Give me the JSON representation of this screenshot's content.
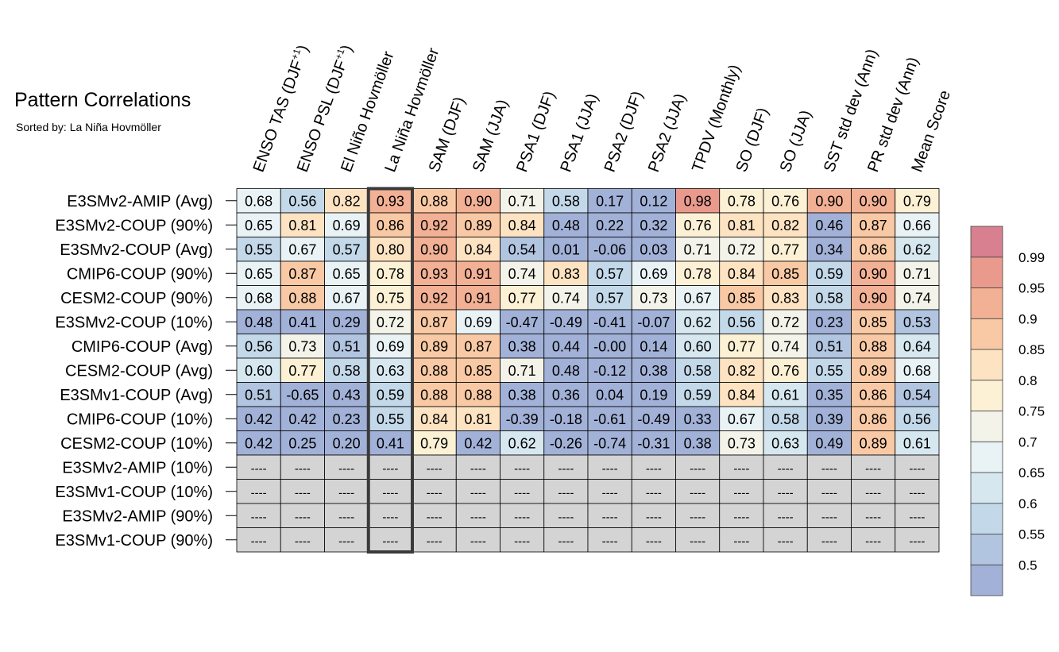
{
  "title": "Pattern Correlations",
  "subtitle": "Sorted by: La Niña Hovmöller",
  "chart_data": {
    "type": "heatmap",
    "columns": [
      {
        "main": "ENSO TAS (DJF",
        "sup": "+1",
        "tail": ")"
      },
      {
        "main": "ENSO PSL (DJF",
        "sup": "+1",
        "tail": ")"
      },
      {
        "main": "El Niño Hovmöller",
        "sup": "",
        "tail": ""
      },
      {
        "main": "La Niña Hovmöller",
        "sup": "",
        "tail": ""
      },
      {
        "main": "SAM (DJF)",
        "sup": "",
        "tail": ""
      },
      {
        "main": "SAM (JJA)",
        "sup": "",
        "tail": ""
      },
      {
        "main": "PSA1 (DJF)",
        "sup": "",
        "tail": ""
      },
      {
        "main": "PSA1 (JJA)",
        "sup": "",
        "tail": ""
      },
      {
        "main": "PSA2 (DJF)",
        "sup": "",
        "tail": ""
      },
      {
        "main": "PSA2 (JJA)",
        "sup": "",
        "tail": ""
      },
      {
        "main": "TPDV (Monthly)",
        "sup": "",
        "tail": ""
      },
      {
        "main": "SO (DJF)",
        "sup": "",
        "tail": ""
      },
      {
        "main": "SO (JJA)",
        "sup": "",
        "tail": ""
      },
      {
        "main": "SST std dev (Ann)",
        "sup": "",
        "tail": ""
      },
      {
        "main": "PR std dev (Ann)",
        "sup": "",
        "tail": ""
      },
      {
        "main": "Mean Score",
        "sup": "",
        "tail": ""
      }
    ],
    "highlight_column": "La Niña Hovmöller",
    "missing_text": "----",
    "rows": [
      {
        "name": "E3SMv2-AMIP (Avg)",
        "values": [
          "0.68",
          "0.56",
          "0.82",
          "0.93",
          "0.88",
          "0.90",
          "0.71",
          "0.58",
          "0.17",
          "0.12",
          "0.98",
          "0.78",
          "0.76",
          "0.90",
          "0.90",
          "0.79"
        ]
      },
      {
        "name": "E3SMv2-COUP (90%)",
        "values": [
          "0.65",
          "0.81",
          "0.69",
          "0.86",
          "0.92",
          "0.89",
          "0.84",
          "0.48",
          "0.22",
          "0.32",
          "0.76",
          "0.81",
          "0.82",
          "0.46",
          "0.87",
          "0.66"
        ]
      },
      {
        "name": "E3SMv2-COUP (Avg)",
        "values": [
          "0.55",
          "0.67",
          "0.57",
          "0.80",
          "0.90",
          "0.84",
          "0.54",
          "0.01",
          "-0.06",
          "0.03",
          "0.71",
          "0.72",
          "0.77",
          "0.34",
          "0.86",
          "0.62"
        ]
      },
      {
        "name": "CMIP6-COUP (90%)",
        "values": [
          "0.65",
          "0.87",
          "0.65",
          "0.78",
          "0.93",
          "0.91",
          "0.74",
          "0.83",
          "0.57",
          "0.69",
          "0.78",
          "0.84",
          "0.85",
          "0.59",
          "0.90",
          "0.71"
        ]
      },
      {
        "name": "CESM2-COUP (90%)",
        "values": [
          "0.68",
          "0.88",
          "0.67",
          "0.75",
          "0.92",
          "0.91",
          "0.77",
          "0.74",
          "0.57",
          "0.73",
          "0.67",
          "0.85",
          "0.83",
          "0.58",
          "0.90",
          "0.74"
        ]
      },
      {
        "name": "E3SMv2-COUP (10%)",
        "values": [
          "0.48",
          "0.41",
          "0.29",
          "0.72",
          "0.87",
          "0.69",
          "-0.47",
          "-0.49",
          "-0.41",
          "-0.07",
          "0.62",
          "0.56",
          "0.72",
          "0.23",
          "0.85",
          "0.53"
        ]
      },
      {
        "name": "CMIP6-COUP (Avg)",
        "values": [
          "0.56",
          "0.73",
          "0.51",
          "0.69",
          "0.89",
          "0.87",
          "0.38",
          "0.44",
          "-0.00",
          "0.14",
          "0.60",
          "0.77",
          "0.74",
          "0.51",
          "0.88",
          "0.64"
        ]
      },
      {
        "name": "CESM2-COUP (Avg)",
        "values": [
          "0.60",
          "0.77",
          "0.58",
          "0.63",
          "0.88",
          "0.85",
          "0.71",
          "0.48",
          "-0.12",
          "0.38",
          "0.58",
          "0.82",
          "0.76",
          "0.55",
          "0.89",
          "0.68"
        ]
      },
      {
        "name": "E3SMv1-COUP (Avg)",
        "values": [
          "0.51",
          "-0.65",
          "0.43",
          "0.59",
          "0.88",
          "0.88",
          "0.38",
          "0.36",
          "0.04",
          "0.19",
          "0.59",
          "0.84",
          "0.61",
          "0.35",
          "0.86",
          "0.54"
        ]
      },
      {
        "name": "CMIP6-COUP (10%)",
        "values": [
          "0.42",
          "0.42",
          "0.23",
          "0.55",
          "0.84",
          "0.81",
          "-0.39",
          "-0.18",
          "-0.61",
          "-0.49",
          "0.33",
          "0.67",
          "0.58",
          "0.39",
          "0.86",
          "0.56"
        ]
      },
      {
        "name": "CESM2-COUP (10%)",
        "values": [
          "0.42",
          "0.25",
          "0.20",
          "0.41",
          "0.79",
          "0.42",
          "0.62",
          "-0.26",
          "-0.74",
          "-0.31",
          "0.38",
          "0.73",
          "0.63",
          "0.49",
          "0.89",
          "0.61"
        ]
      },
      {
        "name": "E3SMv2-AMIP (10%)",
        "values": null
      },
      {
        "name": "E3SMv1-COUP (10%)",
        "values": null
      },
      {
        "name": "E3SMv2-AMIP (90%)",
        "values": null
      },
      {
        "name": "E3SMv1-COUP (90%)",
        "values": null
      }
    ],
    "colorbar": {
      "levels": [
        0.5,
        0.55,
        0.6,
        0.65,
        0.7,
        0.75,
        0.8,
        0.85,
        0.9,
        0.95,
        0.99
      ],
      "labels": [
        "0.5",
        "0.55",
        "0.6",
        "0.65",
        "0.7",
        "0.75",
        "0.8",
        "0.85",
        "0.9",
        "0.95",
        "0.99"
      ],
      "colors": [
        "#a2b1d7",
        "#b1c4e0",
        "#c3d8e9",
        "#d6e7f0",
        "#e9f3f6",
        "#f3f3ea",
        "#fcf0d5",
        "#fde3c2",
        "#f8c9a4",
        "#f2b094",
        "#ea9a8d",
        "#d8808f"
      ],
      "missing_color": "#d4d4d4"
    }
  }
}
